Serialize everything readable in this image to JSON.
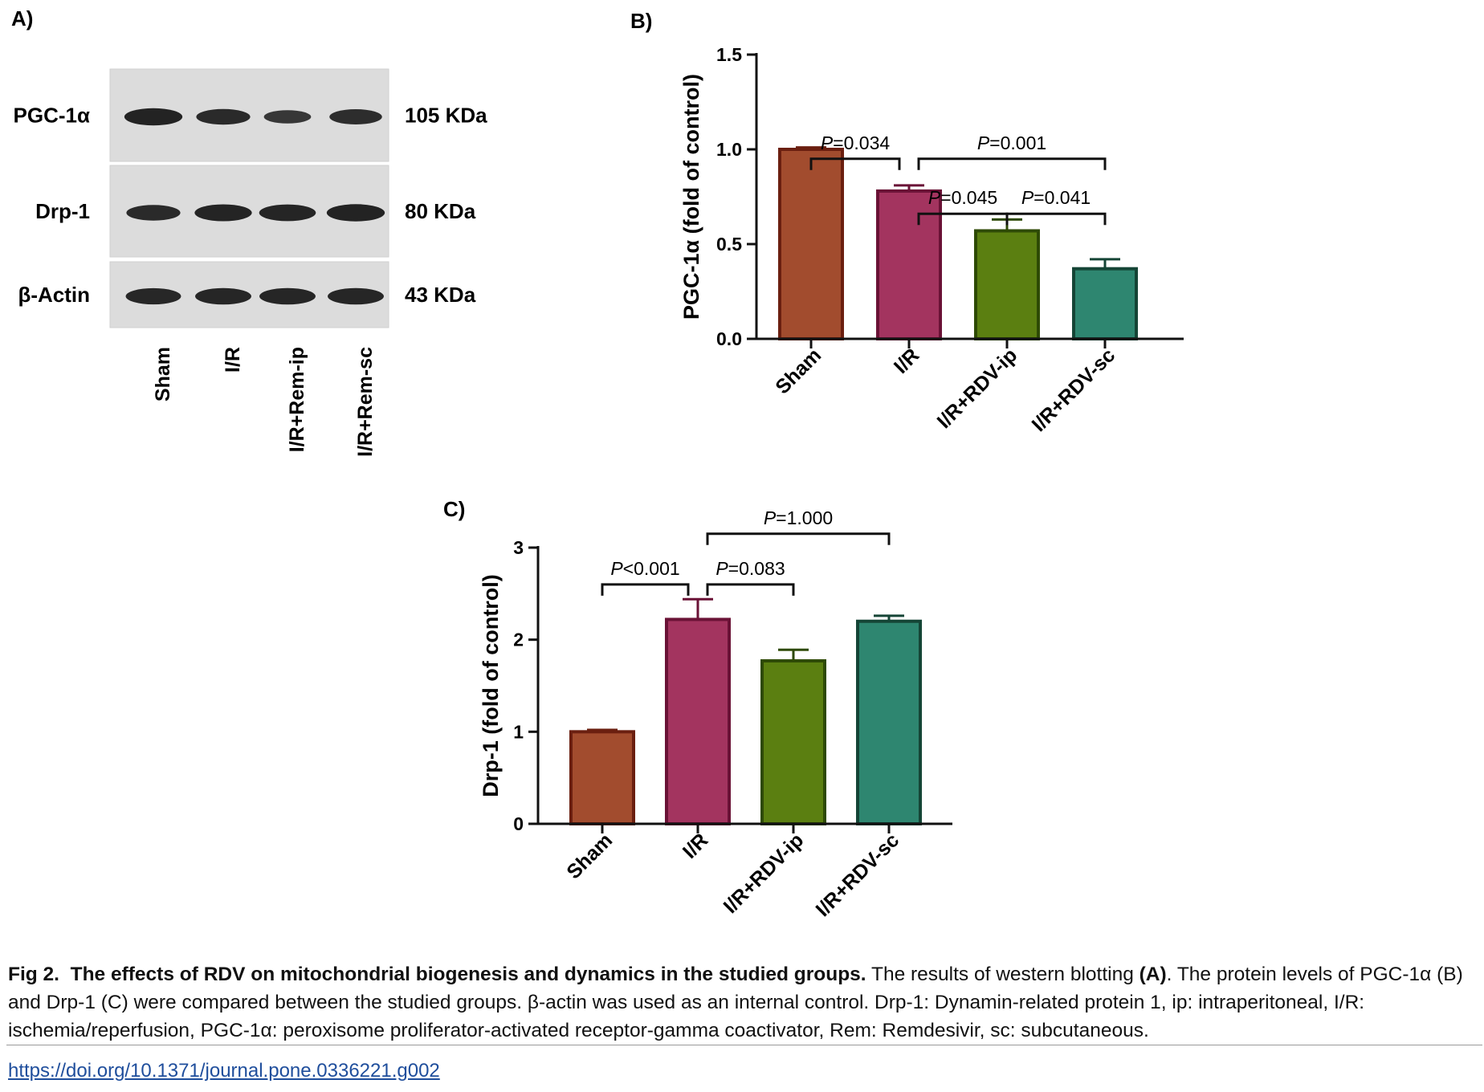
{
  "panel_a": {
    "label": "A)",
    "proteins": [
      {
        "name": "PGC-1α",
        "kda": "105 KDa",
        "band_intensity": [
          0.95,
          0.8,
          0.55,
          0.75
        ]
      },
      {
        "name": "Drp-1",
        "kda": "80 KDa",
        "band_intensity": [
          0.8,
          0.92,
          0.9,
          0.95
        ]
      },
      {
        "name": "β-Actin",
        "kda": "43 KDa",
        "band_intensity": [
          0.85,
          0.88,
          0.88,
          0.88
        ]
      }
    ],
    "lanes": [
      "Sham",
      "I/R",
      "I/R+Rem-ip",
      "I/R+Rem-sc"
    ]
  },
  "chart_data": [
    {
      "panel": "B)",
      "type": "bar",
      "categories": [
        "Sham",
        "I/R",
        "I/R+RDV-ip",
        "I/R+RDV-sc"
      ],
      "values": [
        1.0,
        0.78,
        0.57,
        0.37
      ],
      "errors": [
        0.01,
        0.03,
        0.06,
        0.05
      ],
      "colors": [
        "#a24c2e",
        "#a3345f",
        "#5b7f11",
        "#2e8670"
      ],
      "edge_colors": [
        "#6b1f10",
        "#6a1236",
        "#2e4a05",
        "#154536"
      ],
      "title": "",
      "xlabel": "",
      "ylabel": "PGC-1α (fold of control)",
      "ylim": [
        0,
        1.5
      ],
      "yticks": [
        "0.0",
        "0.5",
        "1.0",
        "1.5"
      ],
      "comparisons": [
        {
          "from": 0,
          "to": 1,
          "text": "P=0.034",
          "level": 0.95
        },
        {
          "from": 1,
          "to": 3,
          "text": "P=0.001",
          "level": 0.95
        },
        {
          "from": 1,
          "to": 2,
          "text": "P=0.045",
          "level": 0.66
        },
        {
          "from": 2,
          "to": 3,
          "text": "P=0.041",
          "level": 0.66
        }
      ]
    },
    {
      "panel": "C)",
      "type": "bar",
      "categories": [
        "Sham",
        "I/R",
        "I/R+RDV-ip",
        "I/R+RDV-sc"
      ],
      "values": [
        1.0,
        2.22,
        1.77,
        2.2
      ],
      "errors": [
        0.02,
        0.22,
        0.12,
        0.06
      ],
      "colors": [
        "#a24c2e",
        "#a3345f",
        "#5b7f11",
        "#2e8670"
      ],
      "edge_colors": [
        "#6b1f10",
        "#6a1236",
        "#2e4a05",
        "#154536"
      ],
      "title": "",
      "xlabel": "",
      "ylabel": "Drp-1 (fold of control)",
      "ylim": [
        0,
        3
      ],
      "yticks": [
        "0",
        "1",
        "2",
        "3"
      ],
      "comparisons": [
        {
          "from": 0,
          "to": 1,
          "text": "P<0.001",
          "level": 2.6
        },
        {
          "from": 1,
          "to": 2,
          "text": "P=0.083",
          "level": 2.6
        },
        {
          "from": 1,
          "to": 3,
          "text": "P=1.000",
          "level": 3.15
        }
      ]
    }
  ],
  "caption": {
    "fig": "Fig 2.",
    "title": "The effects of RDV on mitochondrial biogenesis and dynamics in the studied groups.",
    "text_1": "The results of western blotting",
    "ref_a": "(A)",
    "text_2": ". The protein levels of PGC-1α (B) and Drp-1 (C) were compared between the studied groups. β-actin was used as an internal control. Drp-1: Dynamin-related protein 1, ip: intraperitoneal, I/R: ischemia/reperfusion, PGC-1α: peroxisome proliferator-activated receptor-gamma coactivator, Rem: Remdesivir, sc: subcutaneous."
  },
  "doi": "https://doi.org/10.1371/journal.pone.0336221.g002"
}
